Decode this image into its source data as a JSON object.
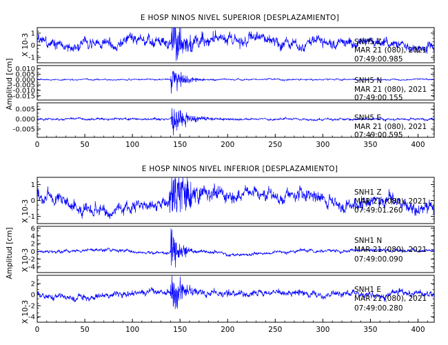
{
  "chart_data": [
    {
      "type": "line",
      "title": "E HOSP NINOS NIVEL SUPERIOR [DESPLAZAMIENTO]",
      "ylabel": "Amplitud [cm]",
      "x_ticks": [
        "0",
        "50",
        "100",
        "150",
        "200",
        "250",
        "300",
        "350",
        "400"
      ],
      "xlim": [
        0,
        417
      ],
      "line_color": "#0000ff",
      "series": [
        {
          "name": "SNH5 Z",
          "station": "SNH5",
          "component": "Z",
          "date": "MAR 21 (080), 2021",
          "time": "07:49:00.985",
          "scale_label": "X 10-3",
          "y_ticks": [
            "1",
            "0",
            "-1"
          ],
          "ylim": [
            -1.45,
            1.45
          ],
          "rms": 0.45,
          "noise": 0.22,
          "quake_amp": 1.1,
          "quake_start": 142,
          "quake_decay": 18,
          "onset": 2,
          "anchors": [
            [
              0,
              0.4
            ],
            [
              20,
              0.2
            ],
            [
              40,
              -0.2
            ],
            [
              60,
              0.3
            ],
            [
              80,
              0.1
            ],
            [
              100,
              0.5
            ],
            [
              120,
              0.2
            ],
            [
              140,
              0.3
            ],
            [
              160,
              0.2
            ],
            [
              200,
              0.4
            ],
            [
              240,
              0.4
            ],
            [
              280,
              0.0
            ],
            [
              300,
              0.2
            ],
            [
              320,
              0.3
            ],
            [
              360,
              0.3
            ],
            [
              400,
              -0.2
            ],
            [
              417,
              -0.4
            ]
          ]
        },
        {
          "name": "SNH5 N",
          "station": "SNH5",
          "component": "N",
          "date": "MAR 21 (080), 2021",
          "time": "07:49:00.155",
          "scale_label": "",
          "y_ticks": [
            "0.010",
            "0.005",
            "0.000",
            "-0.005",
            "-0.010",
            "-0.015"
          ],
          "ylim": [
            -0.019,
            0.013
          ],
          "rms": 0.0006,
          "noise": 0.0003,
          "quake_amp": 0.0085,
          "quake_start": 140,
          "quake_decay": 12,
          "onset": 0,
          "anchors": [
            [
              0,
              0
            ],
            [
              417,
              0
            ]
          ]
        },
        {
          "name": "SNH5 E",
          "station": "SNH5",
          "component": "E",
          "date": "MAR 21 (080), 2021",
          "time": "07:49:00.595",
          "scale_label": "",
          "y_ticks": [
            "0.005",
            "0.000",
            "-0.005"
          ],
          "ylim": [
            -0.0092,
            0.0082
          ],
          "rms": 0.0005,
          "noise": 0.0003,
          "quake_amp": 0.0055,
          "quake_start": 140,
          "quake_decay": 14,
          "onset": 0,
          "anchors": [
            [
              0,
              0
            ],
            [
              417,
              0
            ]
          ]
        }
      ]
    },
    {
      "type": "line",
      "title": "E HOSP NINOS NIVEL INFERIOR [DESPLAZAMIENTO]",
      "ylabel": "Amplitud [cm]",
      "x_ticks": [
        "0",
        "50",
        "100",
        "150",
        "200",
        "250",
        "300",
        "350",
        "400"
      ],
      "xlim": [
        0,
        417
      ],
      "line_color": "#0000ff",
      "series": [
        {
          "name": "SNH1 Z",
          "station": "SNH1",
          "component": "Z",
          "date": "MAR 21 (080), 2021",
          "time": "07:49:01.260",
          "scale_label": "X 10-3",
          "y_ticks": [
            "1",
            "0",
            "-1"
          ],
          "ylim": [
            -1.45,
            1.45
          ],
          "rms": 0.4,
          "noise": 0.2,
          "quake_amp": 0.9,
          "quake_start": 142,
          "quake_decay": 22,
          "onset": 5,
          "anchors": [
            [
              0,
              0.4
            ],
            [
              20,
              0.3
            ],
            [
              30,
              -0.2
            ],
            [
              50,
              -0.5
            ],
            [
              70,
              -0.8
            ],
            [
              90,
              -0.5
            ],
            [
              110,
              -0.4
            ],
            [
              130,
              -0.3
            ],
            [
              160,
              0.4
            ],
            [
              180,
              0.3
            ],
            [
              200,
              0.2
            ],
            [
              220,
              0.5
            ],
            [
              260,
              0.3
            ],
            [
              280,
              0.4
            ],
            [
              300,
              0.2
            ],
            [
              320,
              -0.4
            ],
            [
              340,
              -0.2
            ],
            [
              360,
              0.2
            ],
            [
              400,
              -0.3
            ],
            [
              417,
              -0.5
            ]
          ]
        },
        {
          "name": "SNH1 N",
          "station": "SNH1",
          "component": "N",
          "date": "MAR 21 (080), 2021",
          "time": "07:49:00.090",
          "scale_label": "X 10-3",
          "y_ticks": [
            "6",
            "4",
            "2",
            "0",
            "-2",
            "-4"
          ],
          "ylim": [
            -5.5,
            6.5
          ],
          "rms": 0.4,
          "noise": 0.2,
          "quake_amp": 4.5,
          "quake_start": 140,
          "quake_decay": 8,
          "onset": 0,
          "anchors": [
            [
              0,
              0
            ],
            [
              50,
              0.4
            ],
            [
              80,
              0.6
            ],
            [
              110,
              -0.5
            ],
            [
              160,
              0.2
            ],
            [
              190,
              -0.4
            ],
            [
              200,
              -1.0
            ],
            [
              240,
              -0.6
            ],
            [
              260,
              -0.2
            ],
            [
              300,
              0.3
            ],
            [
              340,
              0.0
            ],
            [
              380,
              0.2
            ],
            [
              417,
              0.1
            ]
          ]
        },
        {
          "name": "SNH1 E",
          "station": "SNH1",
          "component": "E",
          "date": "MAR 21 (080), 2021",
          "time": "07:49:00.280",
          "scale_label": "X 10-3",
          "y_ticks": [
            "2",
            "0",
            "-2",
            "-4"
          ],
          "ylim": [
            -5.0,
            3.5
          ],
          "rms": 0.6,
          "noise": 0.3,
          "quake_amp": 2.8,
          "quake_start": 140,
          "quake_decay": 10,
          "onset": 0,
          "anchors": [
            [
              0,
              0
            ],
            [
              50,
              -0.5
            ],
            [
              100,
              0.3
            ],
            [
              150,
              0.4
            ],
            [
              200,
              0.1
            ],
            [
              250,
              0.3
            ],
            [
              300,
              0.0
            ],
            [
              350,
              0.1
            ],
            [
              417,
              0.2
            ]
          ]
        }
      ]
    }
  ]
}
